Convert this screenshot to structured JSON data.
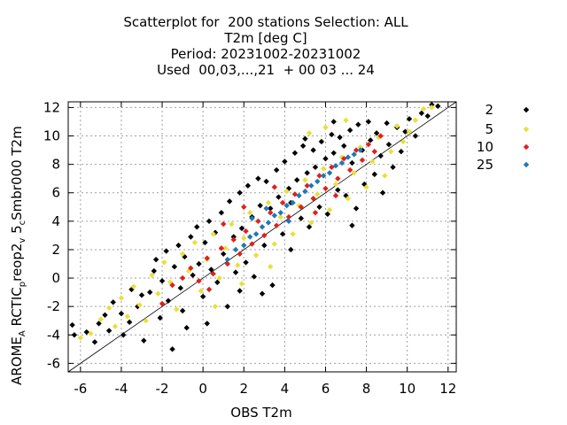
{
  "chart_data": {
    "type": "scatter",
    "title_lines": [
      "Scatterplot for  200 stations Selection: ALL",
      "T2m [deg C]",
      "Period: 20231002-20231002",
      "Used  00,03,...,21  + 00 03 ... 24"
    ],
    "xlabel": "OBS T2m",
    "ylabel_main": "AROME",
    "ylabel_sub1": "A",
    "ylabel_mid": " RCTIC",
    "ylabel_sub2": "p",
    "ylabel_mid2": "reop2",
    "ylabel_sub3": "v",
    "ylabel_mid3": " 5",
    "ylabel_sub4": "c",
    "ylabel_end": "Smbr000 T2m",
    "xlim": [
      -6.6,
      12.4
    ],
    "ylim": [
      -6.6,
      12.4
    ],
    "xticks": [
      -6,
      -4,
      -2,
      0,
      2,
      4,
      6,
      8,
      10,
      12
    ],
    "yticks": [
      -6,
      -4,
      -2,
      0,
      2,
      4,
      6,
      8,
      10,
      12
    ],
    "grid": true,
    "diagonal_line": true,
    "legend_position": "right",
    "series": [
      {
        "name": "2",
        "color": "#000000",
        "points": [
          [
            -6.4,
            -3.3
          ],
          [
            -6.3,
            -4.0
          ],
          [
            -5.7,
            -3.8
          ],
          [
            -5.3,
            -4.5
          ],
          [
            -5.1,
            -3.2
          ],
          [
            -4.8,
            -2.6
          ],
          [
            -4.6,
            -3.7
          ],
          [
            -4.4,
            -1.7
          ],
          [
            -4.0,
            -2.5
          ],
          [
            -3.9,
            -4.0
          ],
          [
            -3.6,
            -3.1
          ],
          [
            -3.5,
            -0.8
          ],
          [
            -3.2,
            -2.0
          ],
          [
            -3.0,
            -1.2
          ],
          [
            -2.9,
            -4.4
          ],
          [
            -2.6,
            -1.0
          ],
          [
            -2.4,
            0.5
          ],
          [
            -2.3,
            1.3
          ],
          [
            -2.1,
            -2.8
          ],
          [
            -2.0,
            -0.2
          ],
          [
            -1.8,
            1.9
          ],
          [
            -1.7,
            -1.6
          ],
          [
            -1.5,
            -5.0
          ],
          [
            -1.4,
            0.8
          ],
          [
            -1.2,
            2.3
          ],
          [
            -1.1,
            -0.7
          ],
          [
            -0.9,
            1.5
          ],
          [
            -0.8,
            -3.5
          ],
          [
            -0.6,
            2.9
          ],
          [
            -0.5,
            0.2
          ],
          [
            -0.3,
            3.6
          ],
          [
            -0.2,
            1.0
          ],
          [
            0.0,
            -1.3
          ],
          [
            0.1,
            2.5
          ],
          [
            0.3,
            4.0
          ],
          [
            0.4,
            0.6
          ],
          [
            0.6,
            3.2
          ],
          [
            0.7,
            -0.3
          ],
          [
            0.9,
            4.6
          ],
          [
            1.0,
            1.7
          ],
          [
            1.2,
            -2.0
          ],
          [
            1.3,
            5.4
          ],
          [
            1.5,
            2.9
          ],
          [
            1.6,
            0.4
          ],
          [
            1.8,
            6.0
          ],
          [
            1.9,
            3.5
          ],
          [
            2.1,
            1.1
          ],
          [
            2.2,
            6.5
          ],
          [
            2.4,
            4.3
          ],
          [
            2.5,
            0.1
          ],
          [
            2.7,
            7.0
          ],
          [
            2.8,
            5.1
          ],
          [
            3.0,
            2.3
          ],
          [
            3.1,
            6.8
          ],
          [
            3.3,
            4.9
          ],
          [
            3.4,
            -0.5
          ],
          [
            3.6,
            7.6
          ],
          [
            3.7,
            5.7
          ],
          [
            3.9,
            3.1
          ],
          [
            4.0,
            8.2
          ],
          [
            4.2,
            6.3
          ],
          [
            4.3,
            2.0
          ],
          [
            4.5,
            8.8
          ],
          [
            4.6,
            6.9
          ],
          [
            4.8,
            4.2
          ],
          [
            4.9,
            9.3
          ],
          [
            5.1,
            7.4
          ],
          [
            5.2,
            3.6
          ],
          [
            5.4,
            9.0
          ],
          [
            5.5,
            7.8
          ],
          [
            5.7,
            5.0
          ],
          [
            5.8,
            9.6
          ],
          [
            6.0,
            8.4
          ],
          [
            6.1,
            4.5
          ],
          [
            6.3,
            10.1
          ],
          [
            6.4,
            8.8
          ],
          [
            6.6,
            6.2
          ],
          [
            6.7,
            9.9
          ],
          [
            6.9,
            9.3
          ],
          [
            7.0,
            5.8
          ],
          [
            7.2,
            10.4
          ],
          [
            7.3,
            8.1
          ],
          [
            7.5,
            4.9
          ],
          [
            7.6,
            10.8
          ],
          [
            7.8,
            9.0
          ],
          [
            7.9,
            6.6
          ],
          [
            8.1,
            11.0
          ],
          [
            8.2,
            9.7
          ],
          [
            8.4,
            7.3
          ],
          [
            8.5,
            10.2
          ],
          [
            8.7,
            8.6
          ],
          [
            8.8,
            6.0
          ],
          [
            9.0,
            10.9
          ],
          [
            9.1,
            9.4
          ],
          [
            9.3,
            7.8
          ],
          [
            9.5,
            10.6
          ],
          [
            9.7,
            8.9
          ],
          [
            9.9,
            10.3
          ],
          [
            10.1,
            11.2
          ],
          [
            10.4,
            10.0
          ],
          [
            10.7,
            11.6
          ],
          [
            11.0,
            11.4
          ],
          [
            11.2,
            12.2
          ],
          [
            11.5,
            12.1
          ],
          [
            2.9,
            -1.1
          ],
          [
            4.3,
            5.3
          ],
          [
            5.0,
            9.8
          ],
          [
            7.3,
            3.7
          ],
          [
            1.8,
            -0.9
          ],
          [
            0.2,
            -3.2
          ],
          [
            -1.0,
            -2.3
          ],
          [
            6.4,
            11.0
          ]
        ]
      },
      {
        "name": "5",
        "color": "#e8e03b",
        "points": [
          [
            -6.0,
            -4.2
          ],
          [
            -5.5,
            -3.9
          ],
          [
            -5.0,
            -2.9
          ],
          [
            -4.6,
            -2.1
          ],
          [
            -4.3,
            -3.4
          ],
          [
            -4.0,
            -1.4
          ],
          [
            -3.7,
            -2.7
          ],
          [
            -3.4,
            -0.6
          ],
          [
            -3.1,
            -1.9
          ],
          [
            -2.8,
            -3.0
          ],
          [
            -2.5,
            0.2
          ],
          [
            -2.2,
            -1.1
          ],
          [
            -1.9,
            1.1
          ],
          [
            -1.6,
            -0.3
          ],
          [
            -1.3,
            -2.2
          ],
          [
            -1.0,
            1.7
          ],
          [
            -0.7,
            0.5
          ],
          [
            -0.4,
            2.5
          ],
          [
            -0.1,
            -0.9
          ],
          [
            0.2,
            1.3
          ],
          [
            0.5,
            3.1
          ],
          [
            0.8,
            0.0
          ],
          [
            1.1,
            2.1
          ],
          [
            1.4,
            3.8
          ],
          [
            1.7,
            0.9
          ],
          [
            2.0,
            2.8
          ],
          [
            2.3,
            4.6
          ],
          [
            2.6,
            1.6
          ],
          [
            2.9,
            3.6
          ],
          [
            3.2,
            5.3
          ],
          [
            3.5,
            2.4
          ],
          [
            3.8,
            4.3
          ],
          [
            4.1,
            6.1
          ],
          [
            4.4,
            3.1
          ],
          [
            4.7,
            5.1
          ],
          [
            5.0,
            6.9
          ],
          [
            5.3,
            3.9
          ],
          [
            5.6,
            5.9
          ],
          [
            5.9,
            7.7
          ],
          [
            6.2,
            4.8
          ],
          [
            6.5,
            6.6
          ],
          [
            6.8,
            8.5
          ],
          [
            7.1,
            5.6
          ],
          [
            7.4,
            7.4
          ],
          [
            7.7,
            9.2
          ],
          [
            8.0,
            6.4
          ],
          [
            8.3,
            8.2
          ],
          [
            8.6,
            9.9
          ],
          [
            8.9,
            7.2
          ],
          [
            9.2,
            8.9
          ],
          [
            9.5,
            10.7
          ],
          [
            9.8,
            9.6
          ],
          [
            10.1,
            10.3
          ],
          [
            10.4,
            11.1
          ],
          [
            10.8,
            11.9
          ],
          [
            11.2,
            12.0
          ],
          [
            0.6,
            -2.0
          ],
          [
            1.9,
            -0.4
          ],
          [
            3.3,
            0.8
          ],
          [
            5.2,
            10.2
          ],
          [
            6.0,
            10.6
          ],
          [
            7.0,
            11.1
          ]
        ]
      },
      {
        "name": "10",
        "color": "#e0201b",
        "points": [
          [
            -2.0,
            -1.8
          ],
          [
            -1.5,
            -0.5
          ],
          [
            -1.0,
            0.0
          ],
          [
            -0.6,
            0.7
          ],
          [
            -0.2,
            -0.2
          ],
          [
            0.2,
            1.4
          ],
          [
            0.5,
            0.3
          ],
          [
            0.9,
            2.1
          ],
          [
            1.2,
            1.0
          ],
          [
            1.5,
            2.7
          ],
          [
            1.8,
            1.7
          ],
          [
            2.1,
            3.3
          ],
          [
            2.4,
            2.4
          ],
          [
            2.7,
            4.0
          ],
          [
            3.0,
            3.0
          ],
          [
            3.3,
            4.6
          ],
          [
            3.6,
            3.7
          ],
          [
            3.9,
            5.3
          ],
          [
            4.2,
            4.3
          ],
          [
            4.5,
            5.9
          ],
          [
            4.8,
            5.0
          ],
          [
            5.1,
            6.5
          ],
          [
            5.4,
            5.6
          ],
          [
            5.7,
            7.2
          ],
          [
            6.0,
            6.3
          ],
          [
            6.3,
            7.8
          ],
          [
            6.6,
            7.0
          ],
          [
            6.9,
            8.4
          ],
          [
            7.2,
            7.6
          ],
          [
            7.5,
            9.0
          ],
          [
            7.8,
            8.3
          ],
          [
            8.1,
            9.4
          ],
          [
            8.4,
            8.9
          ],
          [
            8.7,
            10.0
          ],
          [
            1.0,
            3.8
          ],
          [
            2.0,
            5.0
          ],
          [
            3.5,
            6.4
          ],
          [
            5.5,
            4.6
          ],
          [
            6.5,
            5.8
          ],
          [
            0.3,
            -0.8
          ]
        ]
      },
      {
        "name": "25",
        "color": "#1f78b4",
        "points": [
          [
            1.2,
            1.3
          ],
          [
            1.6,
            2.0
          ],
          [
            2.0,
            2.3
          ],
          [
            2.3,
            2.9
          ],
          [
            2.6,
            3.1
          ],
          [
            2.9,
            3.6
          ],
          [
            3.2,
            3.9
          ],
          [
            3.5,
            4.4
          ],
          [
            3.8,
            4.6
          ],
          [
            4.1,
            5.1
          ],
          [
            4.4,
            5.3
          ],
          [
            4.7,
            5.8
          ],
          [
            5.0,
            6.1
          ],
          [
            5.3,
            6.5
          ],
          [
            5.6,
            6.8
          ],
          [
            5.9,
            7.2
          ],
          [
            6.2,
            7.4
          ],
          [
            6.5,
            7.9
          ],
          [
            6.8,
            8.1
          ],
          [
            7.1,
            8.5
          ],
          [
            7.4,
            8.7
          ],
          [
            7.7,
            9.0
          ],
          [
            2.4,
            4.2
          ],
          [
            3.1,
            4.9
          ],
          [
            4.2,
            4.0
          ]
        ]
      }
    ]
  }
}
